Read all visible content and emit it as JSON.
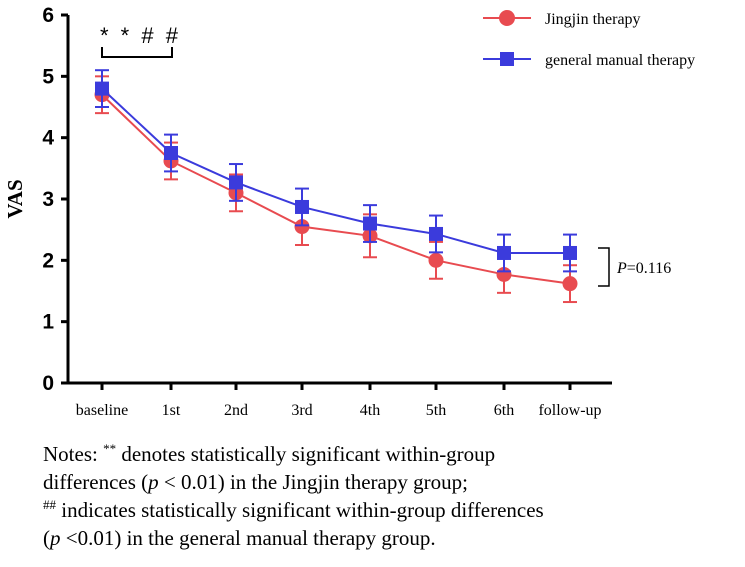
{
  "chart_data": {
    "type": "line",
    "ylabel": "VAS",
    "ylim": [
      0,
      6
    ],
    "yticks": [
      "0",
      "1",
      "2",
      "3",
      "4",
      "5",
      "6"
    ],
    "categories": [
      "baseline",
      "1st",
      "2nd",
      "3rd",
      "4th",
      "5th",
      "6th",
      "follow-up"
    ],
    "series": [
      {
        "name": "Jingjin therapy",
        "color": "#e84b50",
        "marker": "circle",
        "values": [
          4.7,
          3.62,
          3.1,
          2.55,
          2.4,
          2.0,
          1.77,
          1.62
        ],
        "errors": [
          0.3,
          0.3,
          0.3,
          0.3,
          0.35,
          0.3,
          0.3,
          0.3
        ]
      },
      {
        "name": "general manual therapy",
        "color": "#3b3bdc",
        "marker": "square",
        "values": [
          4.8,
          3.75,
          3.27,
          2.87,
          2.6,
          2.43,
          2.12,
          2.12
        ],
        "errors": [
          0.3,
          0.3,
          0.3,
          0.3,
          0.3,
          0.3,
          0.3,
          0.3
        ]
      }
    ],
    "annotations": {
      "significance_markers": "* * # #",
      "p_value_prefix": "P",
      "p_value_suffix": "=0.116"
    }
  },
  "notes": {
    "line1_sup": "**",
    "line1_text": " denotes statistically significant within-group",
    "line2_before": "differences (",
    "p_symbol": "p",
    "line2_cond": " < 0.01",
    "line2_after": ") in the Jingjin therapy group;",
    "line3_sup": "##",
    "line3_text": " indicates statistically significant within-group differences",
    "line4_before": "(",
    "line4_cond": " <0.01",
    "line4_after": ") in the general manual therapy group."
  }
}
